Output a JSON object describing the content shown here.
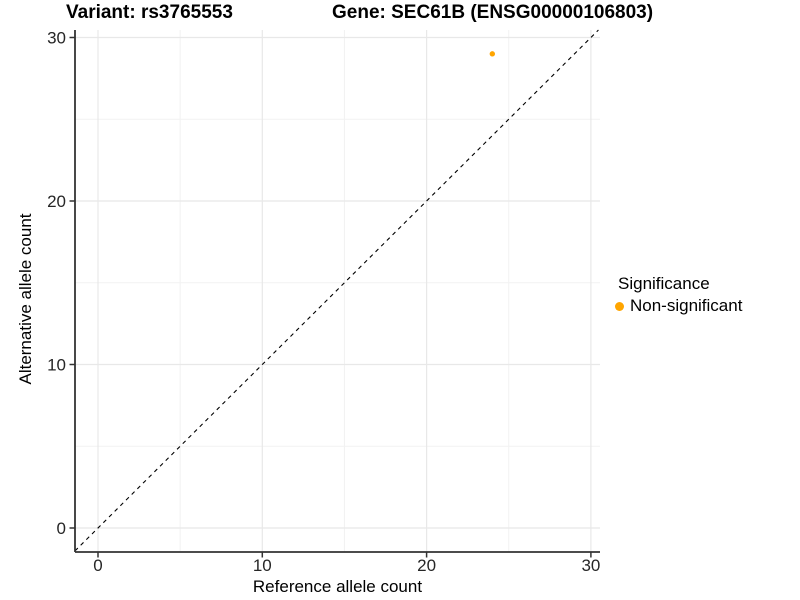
{
  "header": {
    "variant_title": "Variant: rs3765553",
    "gene_title": "Gene: SEC61B (ENSG00000106803)"
  },
  "axes": {
    "x_label": "Reference allele count",
    "y_label": "Alternative allele count"
  },
  "legend": {
    "title": "Significance",
    "items": [
      {
        "label": "Non-significant",
        "color": "#FFA500"
      }
    ]
  },
  "chart_data": {
    "type": "scatter",
    "title": "Variant: rs3765553   Gene: SEC61B (ENSG00000106803)",
    "xlabel": "Reference allele count",
    "ylabel": "Alternative allele count",
    "xlim": [
      -1.5,
      30.6
    ],
    "ylim": [
      -1.5,
      30.5
    ],
    "x_ticks": [
      0,
      10,
      20,
      30
    ],
    "y_ticks": [
      0,
      10,
      20,
      30
    ],
    "x_minor_ticks": [
      5,
      15,
      25
    ],
    "y_minor_ticks": [
      5,
      15,
      25
    ],
    "grid": true,
    "legend_position": "right",
    "points": [
      {
        "x": 24,
        "y": 29,
        "series": "Non-significant",
        "color": "#FFA500"
      }
    ],
    "reference_line": {
      "type": "identity",
      "slope": 1,
      "intercept": 0,
      "style": "dashed",
      "color": "#000000"
    },
    "colors": {
      "point_non_significant": "#FFA500",
      "grid_major": "#E8E8E8",
      "grid_minor": "#F2F2F2",
      "axis_line": "#333333",
      "tick_label": "#262626"
    }
  }
}
